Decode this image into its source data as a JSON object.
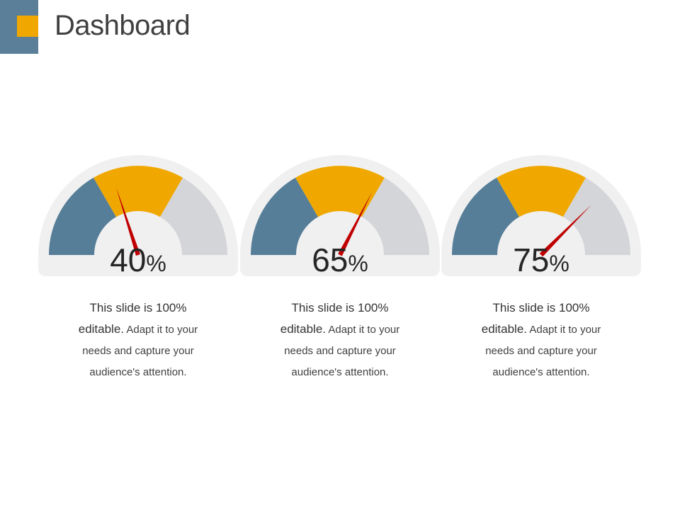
{
  "slide": {
    "title": "Dashboard"
  },
  "gauges": [
    {
      "value": 40,
      "value_text": "40",
      "unit": "%",
      "desc_lead_1": "This slide is 100%",
      "desc_lead_2": "editable.",
      "desc_rest_1": " Adapt it to your",
      "desc_line_3": "needs and capture your",
      "desc_line_4": "audience's attention."
    },
    {
      "value": 65,
      "value_text": "65",
      "unit": "%",
      "desc_lead_1": "This slide is 100%",
      "desc_lead_2": "editable.",
      "desc_rest_1": " Adapt it to your",
      "desc_line_3": "needs and capture your",
      "desc_line_4": "audience's attention."
    },
    {
      "value": 75,
      "value_text": "75",
      "unit": "%",
      "desc_lead_1": "This slide is 100%",
      "desc_lead_2": "editable.",
      "desc_rest_1": " Adapt it to your",
      "desc_line_3": "needs and capture your",
      "desc_line_4": "audience's attention."
    }
  ],
  "colors": {
    "segment_low": "#567e98",
    "segment_mid": "#f0a800",
    "segment_high": "#d4d5d8",
    "gauge_bg": "#f0f0f0",
    "needle": "#c00000",
    "accent_block": "#5b7f98",
    "accent_square": "#f0a800"
  }
}
